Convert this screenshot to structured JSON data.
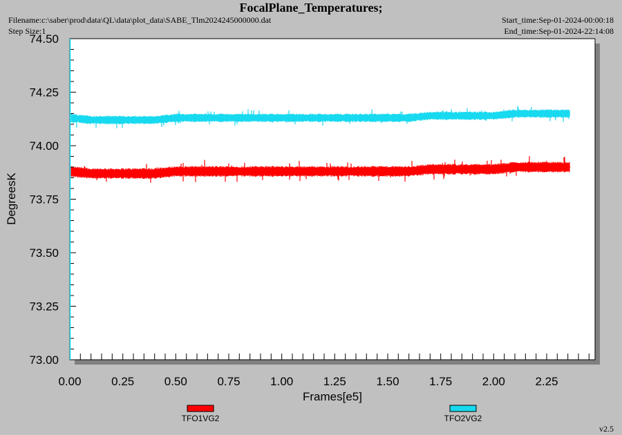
{
  "header": {
    "title": "FocalPlane_Temperatures;",
    "filename": "Filename:c:\\saber\\prod\\data\\QL\\data\\plot_data\\SABE_Tlm2024245000000.dat",
    "step_size": "Step Size:1",
    "start_time": "Start_time:Sep-01-2024-00:00:18",
    "end_time": "End_time:Sep-01-2024-22:14:08"
  },
  "version": "v2.5",
  "colors": {
    "background": "#c0c0c0",
    "plot_bg": "#ffffff",
    "tfo1": "#ff0000",
    "tfo2": "#17d9ef",
    "y_axis_line": "#17d9ef",
    "shadow": "#808080"
  },
  "chart_data": {
    "type": "line",
    "title": "FocalPlane_Temperatures;",
    "xlabel": "Frames[e5]",
    "ylabel": "DegreesK",
    "xlim": [
      0.0,
      2.49
    ],
    "ylim": [
      73.0,
      74.5
    ],
    "x_ticks": [
      "0.00",
      "0.25",
      "0.50",
      "0.75",
      "1.00",
      "1.25",
      "1.50",
      "1.75",
      "2.00",
      "2.25"
    ],
    "y_ticks": [
      "73.00",
      "73.25",
      "73.50",
      "73.75",
      "74.00",
      "74.25",
      "74.50"
    ],
    "x": [
      0.0,
      0.1,
      0.2,
      0.3,
      0.4,
      0.5,
      0.6,
      0.7,
      0.8,
      0.9,
      1.0,
      1.1,
      1.2,
      1.3,
      1.4,
      1.5,
      1.6,
      1.7,
      1.8,
      1.9,
      2.0,
      2.1,
      2.2,
      2.36
    ],
    "series": [
      {
        "name": "TFO1VG2",
        "color": "#ff0000",
        "values": [
          73.88,
          73.87,
          73.87,
          73.87,
          73.87,
          73.88,
          73.88,
          73.88,
          73.88,
          73.88,
          73.88,
          73.88,
          73.88,
          73.88,
          73.88,
          73.88,
          73.88,
          73.89,
          73.89,
          73.89,
          73.89,
          73.9,
          73.9,
          73.9
        ],
        "band": 0.025
      },
      {
        "name": "TFO2VG2",
        "color": "#17d9ef",
        "values": [
          74.13,
          74.12,
          74.12,
          74.12,
          74.12,
          74.13,
          74.13,
          74.13,
          74.13,
          74.13,
          74.13,
          74.13,
          74.13,
          74.13,
          74.13,
          74.13,
          74.13,
          74.14,
          74.14,
          74.14,
          74.14,
          74.15,
          74.15,
          74.15
        ],
        "band": 0.02
      }
    ],
    "grid": false,
    "legend": "bottom"
  }
}
